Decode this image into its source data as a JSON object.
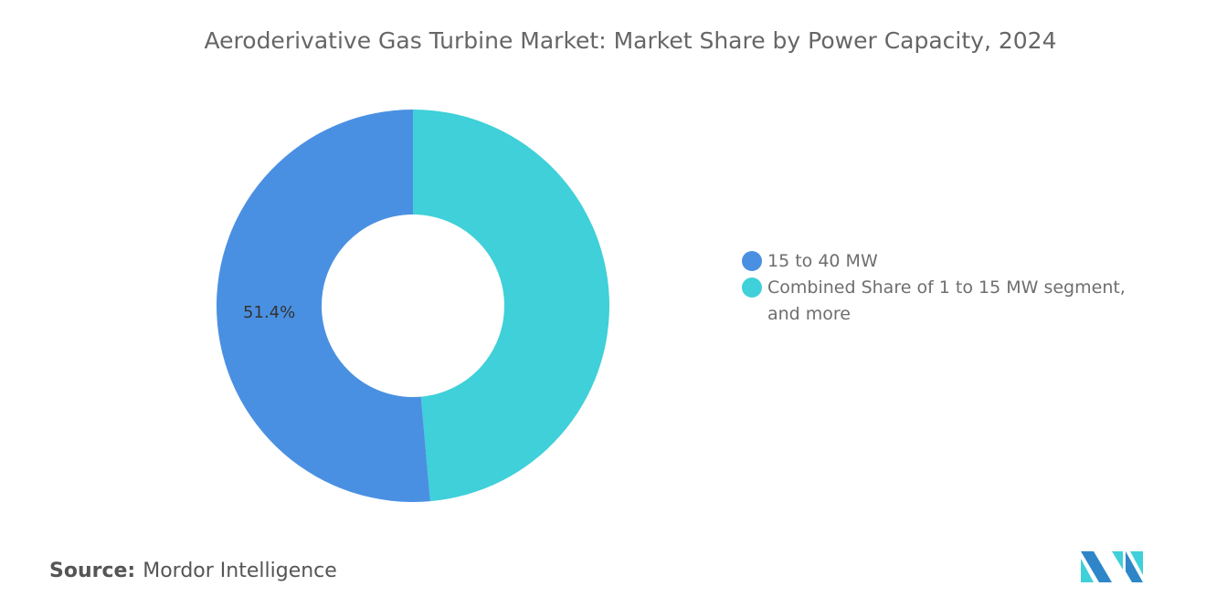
{
  "chart_data": {
    "type": "pie",
    "title": "Aeroderivative Gas Turbine Market: Market Share by Power Capacity, 2024",
    "donut": true,
    "slices": [
      {
        "name": "15 to 40 MW",
        "value": 51.4,
        "label": "51.4%",
        "color": "#4a90e2"
      },
      {
        "name": "Combined Share of 1 to 15 MW segment, and more",
        "value": 48.6,
        "label": "",
        "color": "#3fd0d9"
      }
    ],
    "legend_position": "right"
  },
  "source": {
    "label": "Source:",
    "value": "Mordor Intelligence"
  },
  "logo": {
    "text": "Mordor Intelligence",
    "colors": [
      "#2e86c9",
      "#3fd0d9"
    ]
  }
}
